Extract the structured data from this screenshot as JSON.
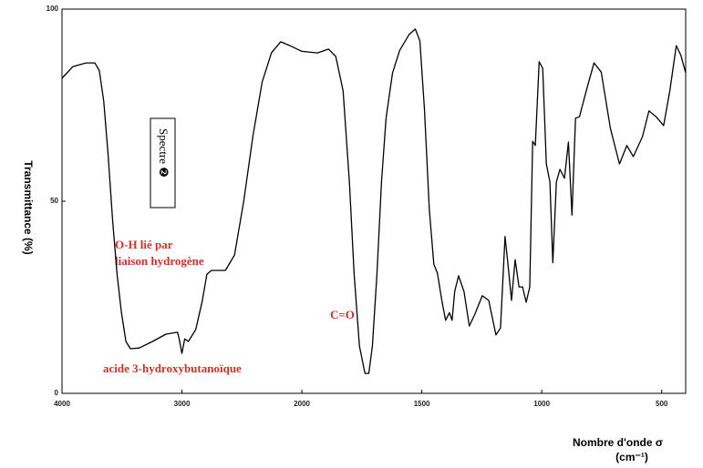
{
  "chart_data": {
    "type": "line",
    "y_label": "Transmittance (%)",
    "x_label": "Nombre d'onde σ",
    "x_unit": "(cm⁻¹)",
    "box_label": "Spectre ❷",
    "annotations": [
      "O-H lié par",
      "liaison hydrogène",
      "C=O",
      "acide 3-hydroxybutanoïque"
    ],
    "color": "#000000",
    "xlim": [
      4000,
      400
    ],
    "xticks": [
      4000,
      3000,
      2000,
      1500,
      1000,
      500
    ],
    "ylim": [
      0,
      100
    ],
    "yticks": [
      0,
      50,
      100
    ],
    "grid": false,
    "x": [
      4000,
      3911,
      3800,
      3726,
      3689,
      3652,
      3615,
      3578,
      3541,
      3504,
      3467,
      3430,
      3356,
      3244,
      3133,
      3037,
      3023,
      3000,
      2977,
      2946,
      2885,
      2831,
      2792,
      2754,
      2638,
      2562,
      2485,
      2408,
      2331,
      2254,
      2177,
      2100,
      2000,
      1935,
      1889,
      1859,
      1828,
      1802,
      1782,
      1760,
      1737,
      1721,
      1706,
      1687,
      1668,
      1649,
      1622,
      1592,
      1553,
      1527,
      1508,
      1489,
      1469,
      1450,
      1435,
      1416,
      1401,
      1385,
      1374,
      1363,
      1347,
      1324,
      1302,
      1279,
      1248,
      1221,
      1191,
      1172,
      1153,
      1141,
      1126,
      1111,
      1095,
      1080,
      1065,
      1050,
      1038,
      1027,
      1011,
      996,
      981,
      966,
      954,
      939,
      924,
      905,
      889,
      874,
      859,
      843,
      809,
      782,
      752,
      714,
      676,
      645,
      618,
      580,
      553,
      523,
      492,
      466,
      439,
      420,
      400
    ],
    "values": [
      82,
      85,
      86,
      86,
      84,
      76,
      62,
      45,
      31,
      21,
      13.5,
      11.6,
      11.8,
      13.5,
      15.4,
      15.9,
      14.2,
      10.4,
      14.2,
      13.5,
      16.6,
      24,
      31,
      32,
      32,
      36,
      50,
      67,
      81,
      88.6,
      91.5,
      90.5,
      89,
      88.6,
      89.6,
      87.7,
      78.7,
      55,
      31,
      12.3,
      5.2,
      5.2,
      12.3,
      31,
      55,
      71.6,
      83.4,
      89.3,
      93.4,
      94.8,
      91.7,
      74,
      48,
      33.6,
      31.3,
      24,
      19,
      21,
      19,
      26.5,
      30.6,
      26.5,
      17.5,
      20.6,
      25.4,
      24.2,
      15.2,
      17,
      40.8,
      33.6,
      24.2,
      34.8,
      27.7,
      27.7,
      23.7,
      27.7,
      65.6,
      64.5,
      86.3,
      84.6,
      59.7,
      55,
      34,
      55,
      58.3,
      56,
      65.4,
      46.4,
      71.6,
      72,
      80,
      86,
      83.6,
      69,
      59.7,
      64.5,
      61.6,
      66.8,
      73.5,
      72,
      69.7,
      78.7,
      90.5,
      88,
      83.4
    ]
  }
}
